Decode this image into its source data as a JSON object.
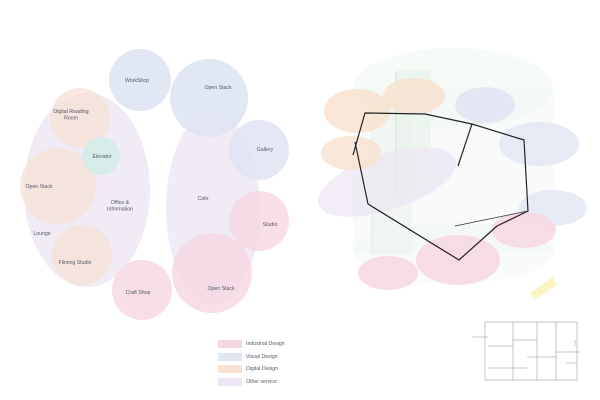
{
  "left_plan": {
    "zones": [
      {
        "label": "WorkShop"
      },
      {
        "label": "Open Stack"
      },
      {
        "label": "Digital Reading\nRoom"
      },
      {
        "label": "Elevator"
      },
      {
        "label": "Gallery"
      },
      {
        "label": "Open Stack"
      },
      {
        "label": "Office &\nInformation"
      },
      {
        "label": "Cafe"
      },
      {
        "label": "Lounge"
      },
      {
        "label": "Studio"
      },
      {
        "label": "Filming Studio"
      },
      {
        "label": "Open Stack"
      },
      {
        "label": "Craft Shop"
      }
    ]
  },
  "legend": [
    {
      "label": "Industrial Design",
      "color": "#f6d8e3"
    },
    {
      "label": "Visual Design",
      "color": "#e1e6f3"
    },
    {
      "label": "Digital Design",
      "color": "#f8e3d3"
    },
    {
      "label": "Other service",
      "color": "#ece6f2"
    }
  ]
}
